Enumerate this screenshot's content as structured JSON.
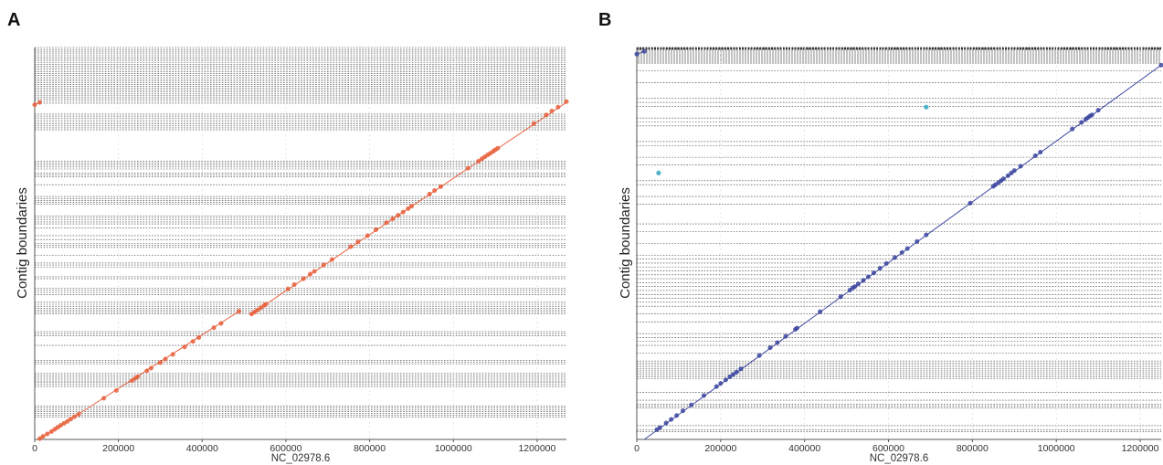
{
  "chart_data": [
    {
      "panel": "A",
      "type": "scatter",
      "title": "",
      "xlabel": "NC_02978.6",
      "ylabel": "Contig boundaries",
      "xlim": [
        0,
        1270000
      ],
      "ylim": [
        0,
        1
      ],
      "x_ticks": [
        0,
        200000,
        400000,
        600000,
        800000,
        1000000,
        1200000
      ],
      "grid": false,
      "color": "#e8603c",
      "segments": [
        {
          "x": [
            0,
            12000
          ],
          "y": [
            0.854,
            0.86
          ]
        },
        {
          "x": [
            10000,
            488000
          ],
          "y": [
            0.0,
            0.327
          ]
        },
        {
          "x": [
            515000,
            1270000
          ],
          "y": [
            0.318,
            0.86
          ]
        }
      ],
      "points": [
        [
          0,
          0.854
        ],
        [
          12000,
          0.86
        ],
        [
          12000,
          0.002
        ],
        [
          20000,
          0.008
        ],
        [
          30000,
          0.014
        ],
        [
          40000,
          0.02
        ],
        [
          48000,
          0.026
        ],
        [
          55000,
          0.031
        ],
        [
          62000,
          0.036
        ],
        [
          70000,
          0.041
        ],
        [
          78000,
          0.046
        ],
        [
          86000,
          0.052
        ],
        [
          95000,
          0.058
        ],
        [
          105000,
          0.064
        ],
        [
          165000,
          0.105
        ],
        [
          195000,
          0.125
        ],
        [
          232000,
          0.15
        ],
        [
          240000,
          0.156
        ],
        [
          246000,
          0.16
        ],
        [
          268000,
          0.175
        ],
        [
          278000,
          0.182
        ],
        [
          300000,
          0.196
        ],
        [
          312000,
          0.205
        ],
        [
          330000,
          0.217
        ],
        [
          358000,
          0.236
        ],
        [
          378000,
          0.25
        ],
        [
          392000,
          0.26
        ],
        [
          428000,
          0.285
        ],
        [
          445000,
          0.296
        ],
        [
          488000,
          0.327
        ],
        [
          518000,
          0.32
        ],
        [
          525000,
          0.325
        ],
        [
          532000,
          0.33
        ],
        [
          540000,
          0.336
        ],
        [
          548000,
          0.342
        ],
        [
          552000,
          0.345
        ],
        [
          605000,
          0.384
        ],
        [
          620000,
          0.395
        ],
        [
          642000,
          0.41
        ],
        [
          658000,
          0.422
        ],
        [
          668000,
          0.429
        ],
        [
          690000,
          0.445
        ],
        [
          710000,
          0.459
        ],
        [
          755000,
          0.492
        ],
        [
          772000,
          0.504
        ],
        [
          795000,
          0.52
        ],
        [
          815000,
          0.535
        ],
        [
          840000,
          0.553
        ],
        [
          855000,
          0.563
        ],
        [
          868000,
          0.572
        ],
        [
          880000,
          0.58
        ],
        [
          892000,
          0.589
        ],
        [
          900000,
          0.595
        ],
        [
          943000,
          0.626
        ],
        [
          955000,
          0.635
        ],
        [
          970000,
          0.645
        ],
        [
          1035000,
          0.692
        ],
        [
          1060000,
          0.71
        ],
        [
          1068000,
          0.716
        ],
        [
          1075000,
          0.721
        ],
        [
          1082000,
          0.726
        ],
        [
          1088000,
          0.73
        ],
        [
          1095000,
          0.735
        ],
        [
          1100000,
          0.739
        ],
        [
          1106000,
          0.743
        ],
        [
          1192000,
          0.806
        ],
        [
          1222000,
          0.828
        ],
        [
          1235000,
          0.838
        ],
        [
          1250000,
          0.848
        ],
        [
          1270000,
          0.862
        ]
      ],
      "boundaries": [
        0.057,
        0.062,
        0.066,
        0.071,
        0.075,
        0.08,
        0.085,
        0.135,
        0.14,
        0.145,
        0.149,
        0.154,
        0.159,
        0.164,
        0.169,
        0.192,
        0.197,
        0.202,
        0.24,
        0.265,
        0.27,
        0.275,
        0.32,
        0.325,
        0.33,
        0.335,
        0.34,
        0.345,
        0.35,
        0.37,
        0.375,
        0.38,
        0.385,
        0.41,
        0.415,
        0.44,
        0.445,
        0.45,
        0.47,
        0.49,
        0.495,
        0.5,
        0.51,
        0.52,
        0.54,
        0.55,
        0.555,
        0.56,
        0.565,
        0.57,
        0.6,
        0.605,
        0.61,
        0.615,
        0.62,
        0.65,
        0.67,
        0.675,
        0.68,
        0.69,
        0.695,
        0.7,
        0.705,
        0.71,
        0.79,
        0.795,
        0.8,
        0.805,
        0.81,
        0.815,
        0.82,
        0.825,
        0.83
      ],
      "dense_band": [
        0.858,
        1.0,
        30
      ]
    },
    {
      "panel": "B",
      "type": "scatter",
      "title": "",
      "xlabel": "NC_02978.6",
      "ylabel": "Contig boundaries",
      "xlim": [
        0,
        1250000
      ],
      "ylim": [
        0,
        1
      ],
      "x_ticks": [
        0,
        200000,
        400000,
        600000,
        800000,
        1000000,
        1200000
      ],
      "grid": false,
      "color": "#3c46a0",
      "outlier_color": "#4fb3c8",
      "segments": [
        {
          "x": [
            0,
            18000
          ],
          "y": [
            0.983,
            0.99
          ]
        },
        {
          "x": [
            18000,
            1250000
          ],
          "y": [
            0.0,
            0.955
          ]
        }
      ],
      "points": [
        [
          0,
          0.983
        ],
        [
          18000,
          0.99
        ],
        [
          48000,
          0.025
        ],
        [
          55000,
          0.03
        ],
        [
          70000,
          0.042
        ],
        [
          82000,
          0.051
        ],
        [
          95000,
          0.061
        ],
        [
          110000,
          0.073
        ],
        [
          130000,
          0.088
        ],
        [
          160000,
          0.112
        ],
        [
          190000,
          0.135
        ],
        [
          200000,
          0.143
        ],
        [
          212000,
          0.152
        ],
        [
          222000,
          0.16
        ],
        [
          230000,
          0.166
        ],
        [
          238000,
          0.172
        ],
        [
          248000,
          0.18
        ],
        [
          292000,
          0.214
        ],
        [
          318000,
          0.234
        ],
        [
          335000,
          0.247
        ],
        [
          355000,
          0.263
        ],
        [
          378000,
          0.281
        ],
        [
          382000,
          0.284
        ],
        [
          437000,
          0.326
        ],
        [
          486000,
          0.364
        ],
        [
          508000,
          0.381
        ],
        [
          515000,
          0.387
        ],
        [
          520000,
          0.39
        ],
        [
          528000,
          0.397
        ],
        [
          540000,
          0.406
        ],
        [
          552000,
          0.415
        ],
        [
          565000,
          0.425
        ],
        [
          580000,
          0.437
        ],
        [
          595000,
          0.449
        ],
        [
          615000,
          0.464
        ],
        [
          632000,
          0.477
        ],
        [
          645000,
          0.487
        ],
        [
          668000,
          0.505
        ],
        [
          690000,
          0.522
        ],
        [
          795000,
          0.603
        ],
        [
          850000,
          0.646
        ],
        [
          855000,
          0.65
        ],
        [
          862000,
          0.655
        ],
        [
          868000,
          0.66
        ],
        [
          874000,
          0.665
        ],
        [
          885000,
          0.673
        ],
        [
          893000,
          0.68
        ],
        [
          900000,
          0.686
        ],
        [
          915000,
          0.697
        ],
        [
          950000,
          0.724
        ],
        [
          962000,
          0.733
        ],
        [
          1038000,
          0.792
        ],
        [
          1060000,
          0.809
        ],
        [
          1070000,
          0.817
        ],
        [
          1075000,
          0.821
        ],
        [
          1080000,
          0.825
        ],
        [
          1085000,
          0.828
        ],
        [
          1100000,
          0.84
        ],
        [
          1250000,
          0.955
        ]
      ],
      "outliers": [
        [
          52000,
          0.68
        ],
        [
          690000,
          0.848
        ]
      ],
      "boundaries": [
        0.02,
        0.025,
        0.035,
        0.08,
        0.085,
        0.09,
        0.1,
        0.12,
        0.155,
        0.16,
        0.165,
        0.17,
        0.175,
        0.18,
        0.185,
        0.19,
        0.195,
        0.2,
        0.22,
        0.24,
        0.25,
        0.26,
        0.27,
        0.3,
        0.32,
        0.34,
        0.35,
        0.36,
        0.37,
        0.38,
        0.39,
        0.4,
        0.41,
        0.42,
        0.43,
        0.44,
        0.45,
        0.46,
        0.47,
        0.5,
        0.53,
        0.55,
        0.6,
        0.62,
        0.65,
        0.66,
        0.7,
        0.72,
        0.75,
        0.76,
        0.8,
        0.81,
        0.82,
        0.85,
        0.86,
        0.87,
        0.91,
        0.94
      ],
      "dense_band": [
        0.995,
        1.0,
        20
      ]
    }
  ]
}
